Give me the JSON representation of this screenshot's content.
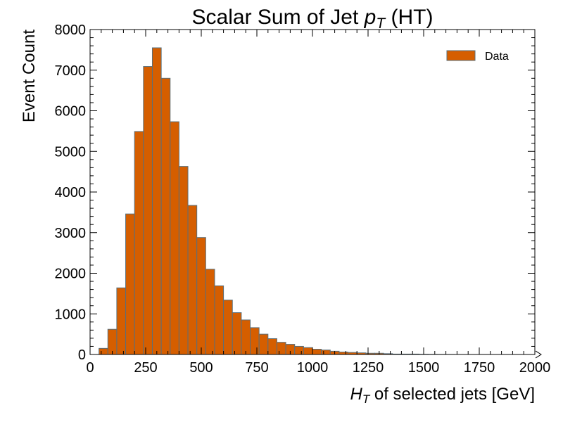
{
  "chart_data": {
    "type": "bar",
    "histogram": true,
    "title": "Scalar Sum of Jet pT (HT)",
    "title_parts": {
      "before": "Scalar Sum of Jet ",
      "var": "p",
      "sub": "T",
      "after": " (HT)"
    },
    "xlabel": "HT of selected jets [GeV]",
    "xlabel_parts": {
      "var": "H",
      "sub": "T",
      "after": " of selected jets [GeV]"
    },
    "ylabel": "Event Count",
    "xlim": [
      0,
      2000
    ],
    "ylim": [
      0,
      8000
    ],
    "x_ticks": [
      0,
      250,
      500,
      750,
      1000,
      1250,
      1500,
      1750,
      2000
    ],
    "y_ticks": [
      0,
      1000,
      2000,
      3000,
      4000,
      5000,
      6000,
      7000,
      8000
    ],
    "bin_width": 40,
    "bin_edges_start": 40,
    "series": [
      {
        "name": "Data",
        "color": "#d55e00",
        "edge_color": "#5a6f7a",
        "values": [
          150,
          620,
          1640,
          3460,
          5490,
          7090,
          7550,
          6800,
          5730,
          4630,
          3670,
          2880,
          2100,
          1690,
          1340,
          1030,
          850,
          660,
          500,
          390,
          300,
          250,
          200,
          170,
          130,
          110,
          80,
          60,
          50,
          40,
          30,
          30,
          20,
          10,
          10,
          10,
          5,
          3,
          2,
          1,
          0,
          0,
          0,
          0,
          0,
          0,
          0,
          0,
          0
        ]
      }
    ],
    "legend": {
      "entries": [
        "Data"
      ],
      "placement": "top-right"
    },
    "grid": false
  }
}
